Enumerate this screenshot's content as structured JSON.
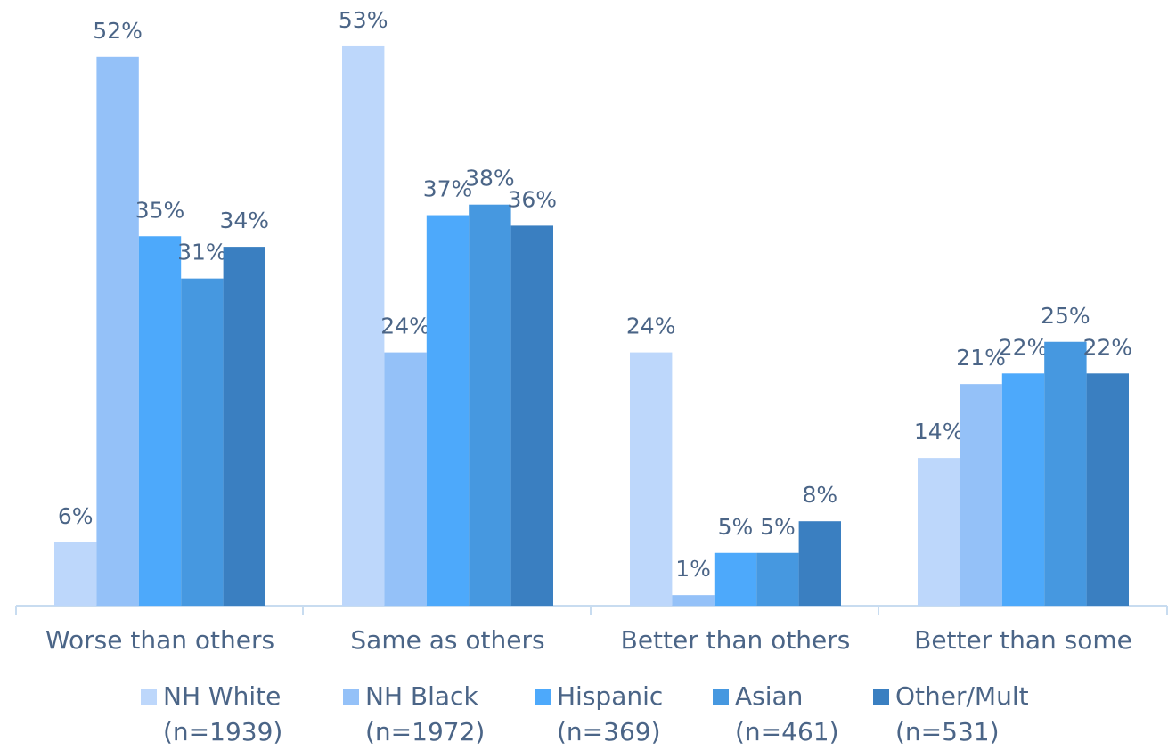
{
  "chart_data": {
    "type": "bar",
    "categories": [
      "Worse than others",
      "Same as others",
      "Better than others",
      "Better than some"
    ],
    "series": [
      {
        "name": "NH White (n=1939)",
        "color": "#bdd7fb",
        "values": [
          6,
          53,
          24,
          14
        ],
        "value_labels": [
          "6%",
          "53%",
          "24%",
          "14%"
        ]
      },
      {
        "name": "NH Black (n=1972)",
        "color": "#94c1f8",
        "values": [
          52,
          24,
          1,
          21
        ],
        "value_labels": [
          "52%",
          "24%",
          "1%",
          "21%"
        ]
      },
      {
        "name": "Hispanic (n=369)",
        "color": "#4da9fb",
        "values": [
          35,
          37,
          5,
          22
        ],
        "value_labels": [
          "35%",
          "37%",
          "5%",
          "22%"
        ]
      },
      {
        "name": "Asian (n=461)",
        "color": "#4698e0",
        "values": [
          31,
          38,
          5,
          25
        ],
        "value_labels": [
          "31%",
          "38%",
          "5%",
          "25%"
        ]
      },
      {
        "name": "Other/Mult (n=531)",
        "color": "#3a7fc1",
        "values": [
          34,
          36,
          8,
          22
        ],
        "value_labels": [
          "34%",
          "36%",
          "8%",
          "22%"
        ]
      }
    ],
    "legend": "bottom"
  }
}
